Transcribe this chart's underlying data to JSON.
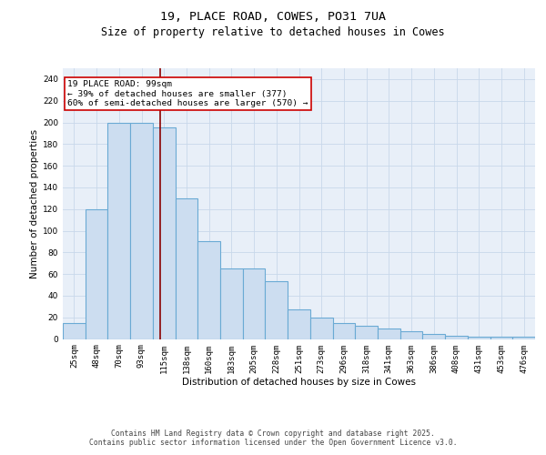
{
  "title": "19, PLACE ROAD, COWES, PO31 7UA",
  "subtitle": "Size of property relative to detached houses in Cowes",
  "xlabel": "Distribution of detached houses by size in Cowes",
  "ylabel": "Number of detached properties",
  "categories": [
    "25sqm",
    "48sqm",
    "70sqm",
    "93sqm",
    "115sqm",
    "138sqm",
    "160sqm",
    "183sqm",
    "205sqm",
    "228sqm",
    "251sqm",
    "273sqm",
    "296sqm",
    "318sqm",
    "341sqm",
    "363sqm",
    "386sqm",
    "408sqm",
    "431sqm",
    "453sqm",
    "476sqm"
  ],
  "values": [
    15,
    120,
    200,
    200,
    195,
    130,
    90,
    65,
    65,
    53,
    27,
    20,
    15,
    12,
    10,
    7,
    5,
    3,
    2,
    2,
    2
  ],
  "bar_color": "#ccddf0",
  "bar_edge_color": "#6aaad4",
  "bar_linewidth": 0.8,
  "vline_x": 3.83,
  "vline_color": "#8b0000",
  "annotation_text": "19 PLACE ROAD: 99sqm\n← 39% of detached houses are smaller (377)\n60% of semi-detached houses are larger (570) →",
  "annotation_box_color": "#ffffff",
  "annotation_box_edge_color": "#cc0000",
  "ylim": [
    0,
    250
  ],
  "yticks": [
    0,
    20,
    40,
    60,
    80,
    100,
    120,
    140,
    160,
    180,
    200,
    220,
    240
  ],
  "grid_color": "#c8d8ea",
  "background_color": "#e8eff8",
  "footer_text": "Contains HM Land Registry data © Crown copyright and database right 2025.\nContains public sector information licensed under the Open Government Licence v3.0.",
  "title_fontsize": 9.5,
  "subtitle_fontsize": 8.5,
  "ylabel_fontsize": 7.5,
  "xlabel_fontsize": 7.5,
  "tick_fontsize": 6.5,
  "ann_fontsize": 6.8,
  "footer_fontsize": 5.8
}
